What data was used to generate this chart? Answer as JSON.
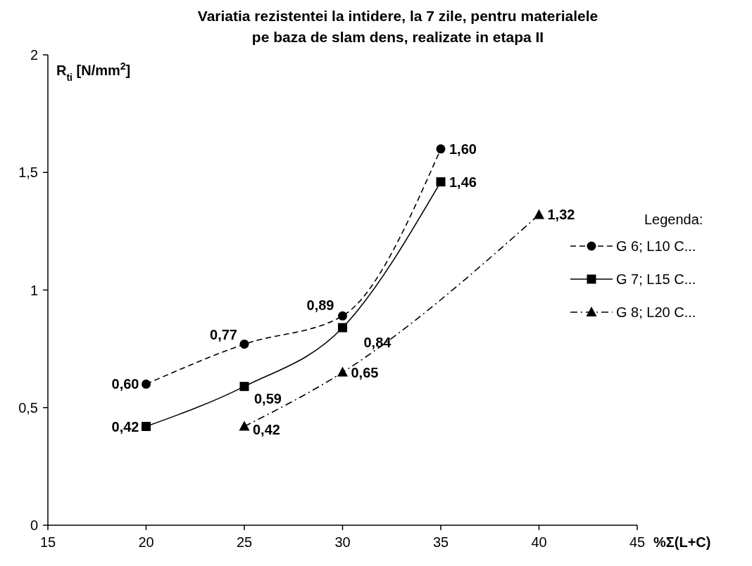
{
  "chart_data": {
    "type": "line",
    "title": "Variatia rezistentei la intidere, la 7 zile, pentru materialele\npe baza de slam dens, realizate in etapa II",
    "xlabel": "%Σ(L+C)",
    "ylabel": "R$_{ti}$ [N/mm$^{2}$]",
    "legend_title": "Legenda:",
    "xlim": [
      15,
      45
    ],
    "xticks": [
      15,
      20,
      25,
      30,
      35,
      40,
      45
    ],
    "ylim": [
      0,
      2
    ],
    "yticks": [
      0,
      {
        "value": 0.5,
        "label": "0,5"
      },
      1,
      {
        "value": 1.5,
        "label": "1,5"
      },
      2
    ],
    "grid": false,
    "legend": "right",
    "series": [
      {
        "name": "G 6; L10 C...",
        "color": "#000000",
        "marker": "circle",
        "line_style": "dashed",
        "x": [
          20,
          25,
          30,
          35
        ],
        "values": [
          0.6,
          0.77,
          0.89,
          1.6
        ],
        "value_labels": [
          "0,60",
          "0,77",
          "0,89",
          "1,60"
        ]
      },
      {
        "name": "G 7; L15 C...",
        "color": "#000000",
        "marker": "square",
        "line_style": "solid",
        "x": [
          20,
          25,
          30,
          35
        ],
        "values": [
          0.42,
          0.59,
          0.84,
          1.46
        ],
        "value_labels": [
          "0,42",
          "0,59",
          "0,84",
          "1,46"
        ]
      },
      {
        "name": "G 8; L20 C...",
        "color": "#000000",
        "marker": "triangle",
        "line_style": "dashdot",
        "x": [
          25,
          30,
          40
        ],
        "values": [
          0.42,
          0.65,
          1.32
        ],
        "value_labels": [
          "0,42",
          "0,65",
          "1,32"
        ]
      }
    ]
  }
}
